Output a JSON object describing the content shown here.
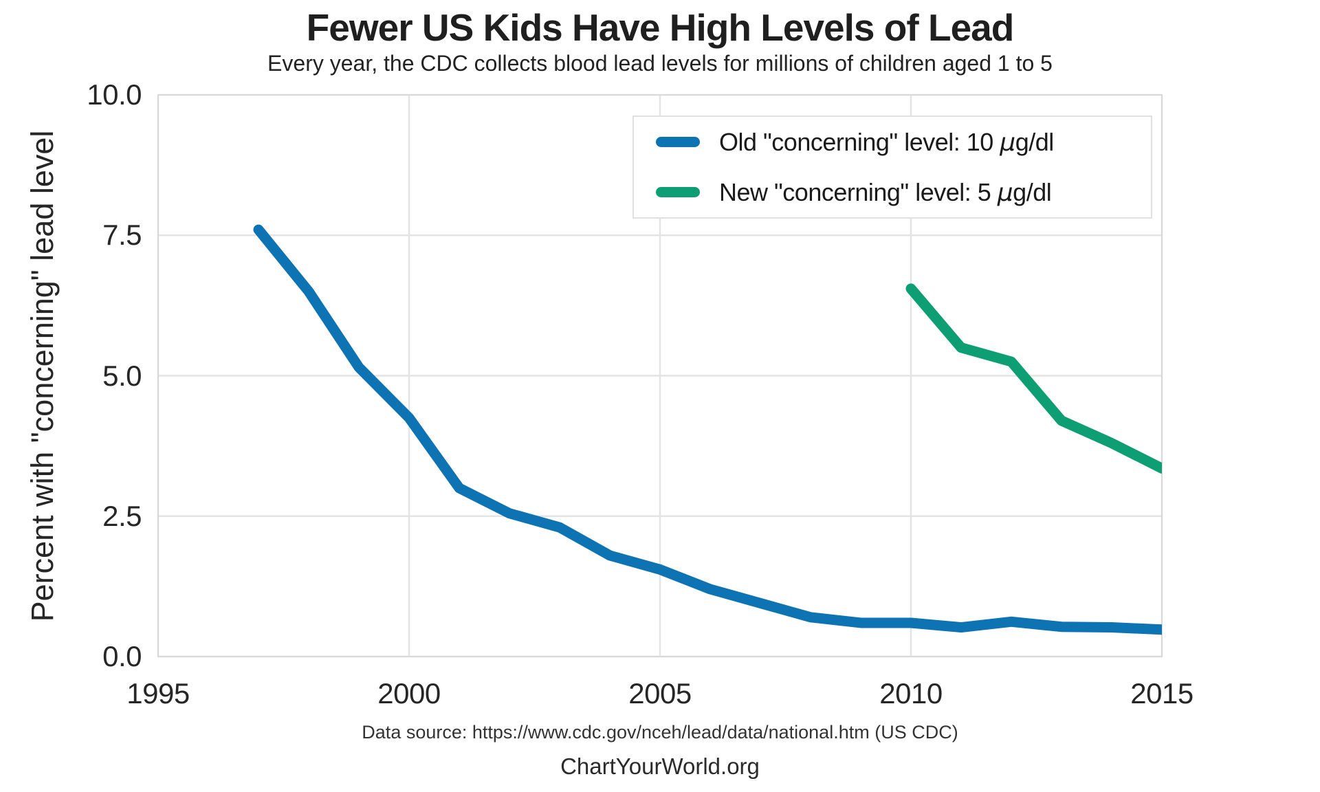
{
  "chart_data": {
    "type": "line",
    "title": "Fewer US Kids Have High Levels of Lead",
    "subtitle": "Every year, the CDC collects blood lead levels for millions of children aged 1 to 5",
    "xlabel": "",
    "ylabel": "Percent with \"concerning\" lead level",
    "xlim": [
      1995,
      2015
    ],
    "ylim": [
      0,
      10
    ],
    "x_ticks": [
      1995,
      2000,
      2005,
      2010,
      2015
    ],
    "x_tick_labels": [
      "1995",
      "2000",
      "2005",
      "2010",
      "2015"
    ],
    "y_ticks": [
      0.0,
      2.5,
      5.0,
      7.5,
      10.0
    ],
    "y_tick_labels": [
      "0.0",
      "2.5",
      "5.0",
      "7.5",
      "10.0"
    ],
    "grid": true,
    "legend_position": "upper right",
    "series": [
      {
        "name": "Old \"concerning\" level: 10 μg/dl",
        "color": "#0d73b2",
        "x": [
          1997,
          1998,
          1999,
          2000,
          2001,
          2002,
          2003,
          2004,
          2005,
          2006,
          2007,
          2008,
          2009,
          2010,
          2011,
          2012,
          2013,
          2014,
          2015
        ],
        "values": [
          7.6,
          6.5,
          5.15,
          4.25,
          3.0,
          2.55,
          2.3,
          1.8,
          1.55,
          1.2,
          0.95,
          0.7,
          0.6,
          0.6,
          0.52,
          0.62,
          0.53,
          0.52,
          0.48
        ]
      },
      {
        "name": "New \"concerning\" level: 5 μg/dl",
        "color": "#0d9e74",
        "x": [
          2010,
          2011,
          2012,
          2013,
          2014,
          2015
        ],
        "values": [
          6.55,
          5.5,
          5.25,
          4.2,
          3.8,
          3.35
        ]
      }
    ],
    "source_note": "Data source: https://www.cdc.gov/nceh/lead/data/national.htm (US CDC)",
    "credit": "ChartYourWorld.org"
  },
  "legend": {
    "items": [
      {
        "prefix": "Old \"concerning\" level: 10 ",
        "mu": "μ",
        "suffix": "g/dl"
      },
      {
        "prefix": "New \"concerning\" level: 5 ",
        "mu": "μ",
        "suffix": "g/dl"
      }
    ]
  }
}
